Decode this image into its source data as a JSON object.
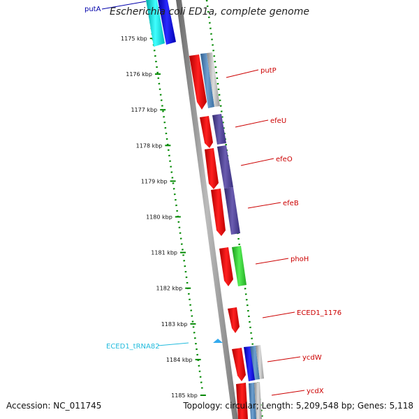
{
  "title": "Escherichia coli ED1a, complete genome",
  "footer": {
    "accession": "Accession: NC_011745",
    "summary": "Topology: circular; Length: 5,209,548 bp; Genes: 5,118"
  },
  "ruler": {
    "ticks": [
      "1175 kbp",
      "1176 kbp",
      "1177 kbp",
      "1178 kbp",
      "1179 kbp",
      "1180 kbp",
      "1181 kbp",
      "1182 kbp",
      "1183 kbp",
      "1184 kbp",
      "1185 kbp"
    ]
  },
  "gene_labels": [
    {
      "name": "putA",
      "color": "#0000aa"
    },
    {
      "name": "putP",
      "color": "#cc0000"
    },
    {
      "name": "efeU",
      "color": "#cc0000"
    },
    {
      "name": "efeO",
      "color": "#cc0000"
    },
    {
      "name": "efeB",
      "color": "#cc0000"
    },
    {
      "name": "phoH",
      "color": "#cc0000"
    },
    {
      "name": "ECED1_1176",
      "color": "#cc0000"
    },
    {
      "name": "ECED1_tRNA82",
      "color": "#22bbdd"
    },
    {
      "name": "ycdW",
      "color": "#cc0000"
    },
    {
      "name": "ycdX",
      "color": "#cc0000"
    }
  ],
  "colors": {
    "cds": "#ee0000",
    "cog_blue": "#0000ee",
    "cog_cyan": "#00cccc",
    "cog_steel": "#4682b4",
    "cog_purple": "#4b3f8c",
    "cog_green": "#33cc33",
    "cog_gray": "#aaaaaa",
    "trna": "#33aaee",
    "backbone": "#888888",
    "gc_ticks": "#008800"
  }
}
